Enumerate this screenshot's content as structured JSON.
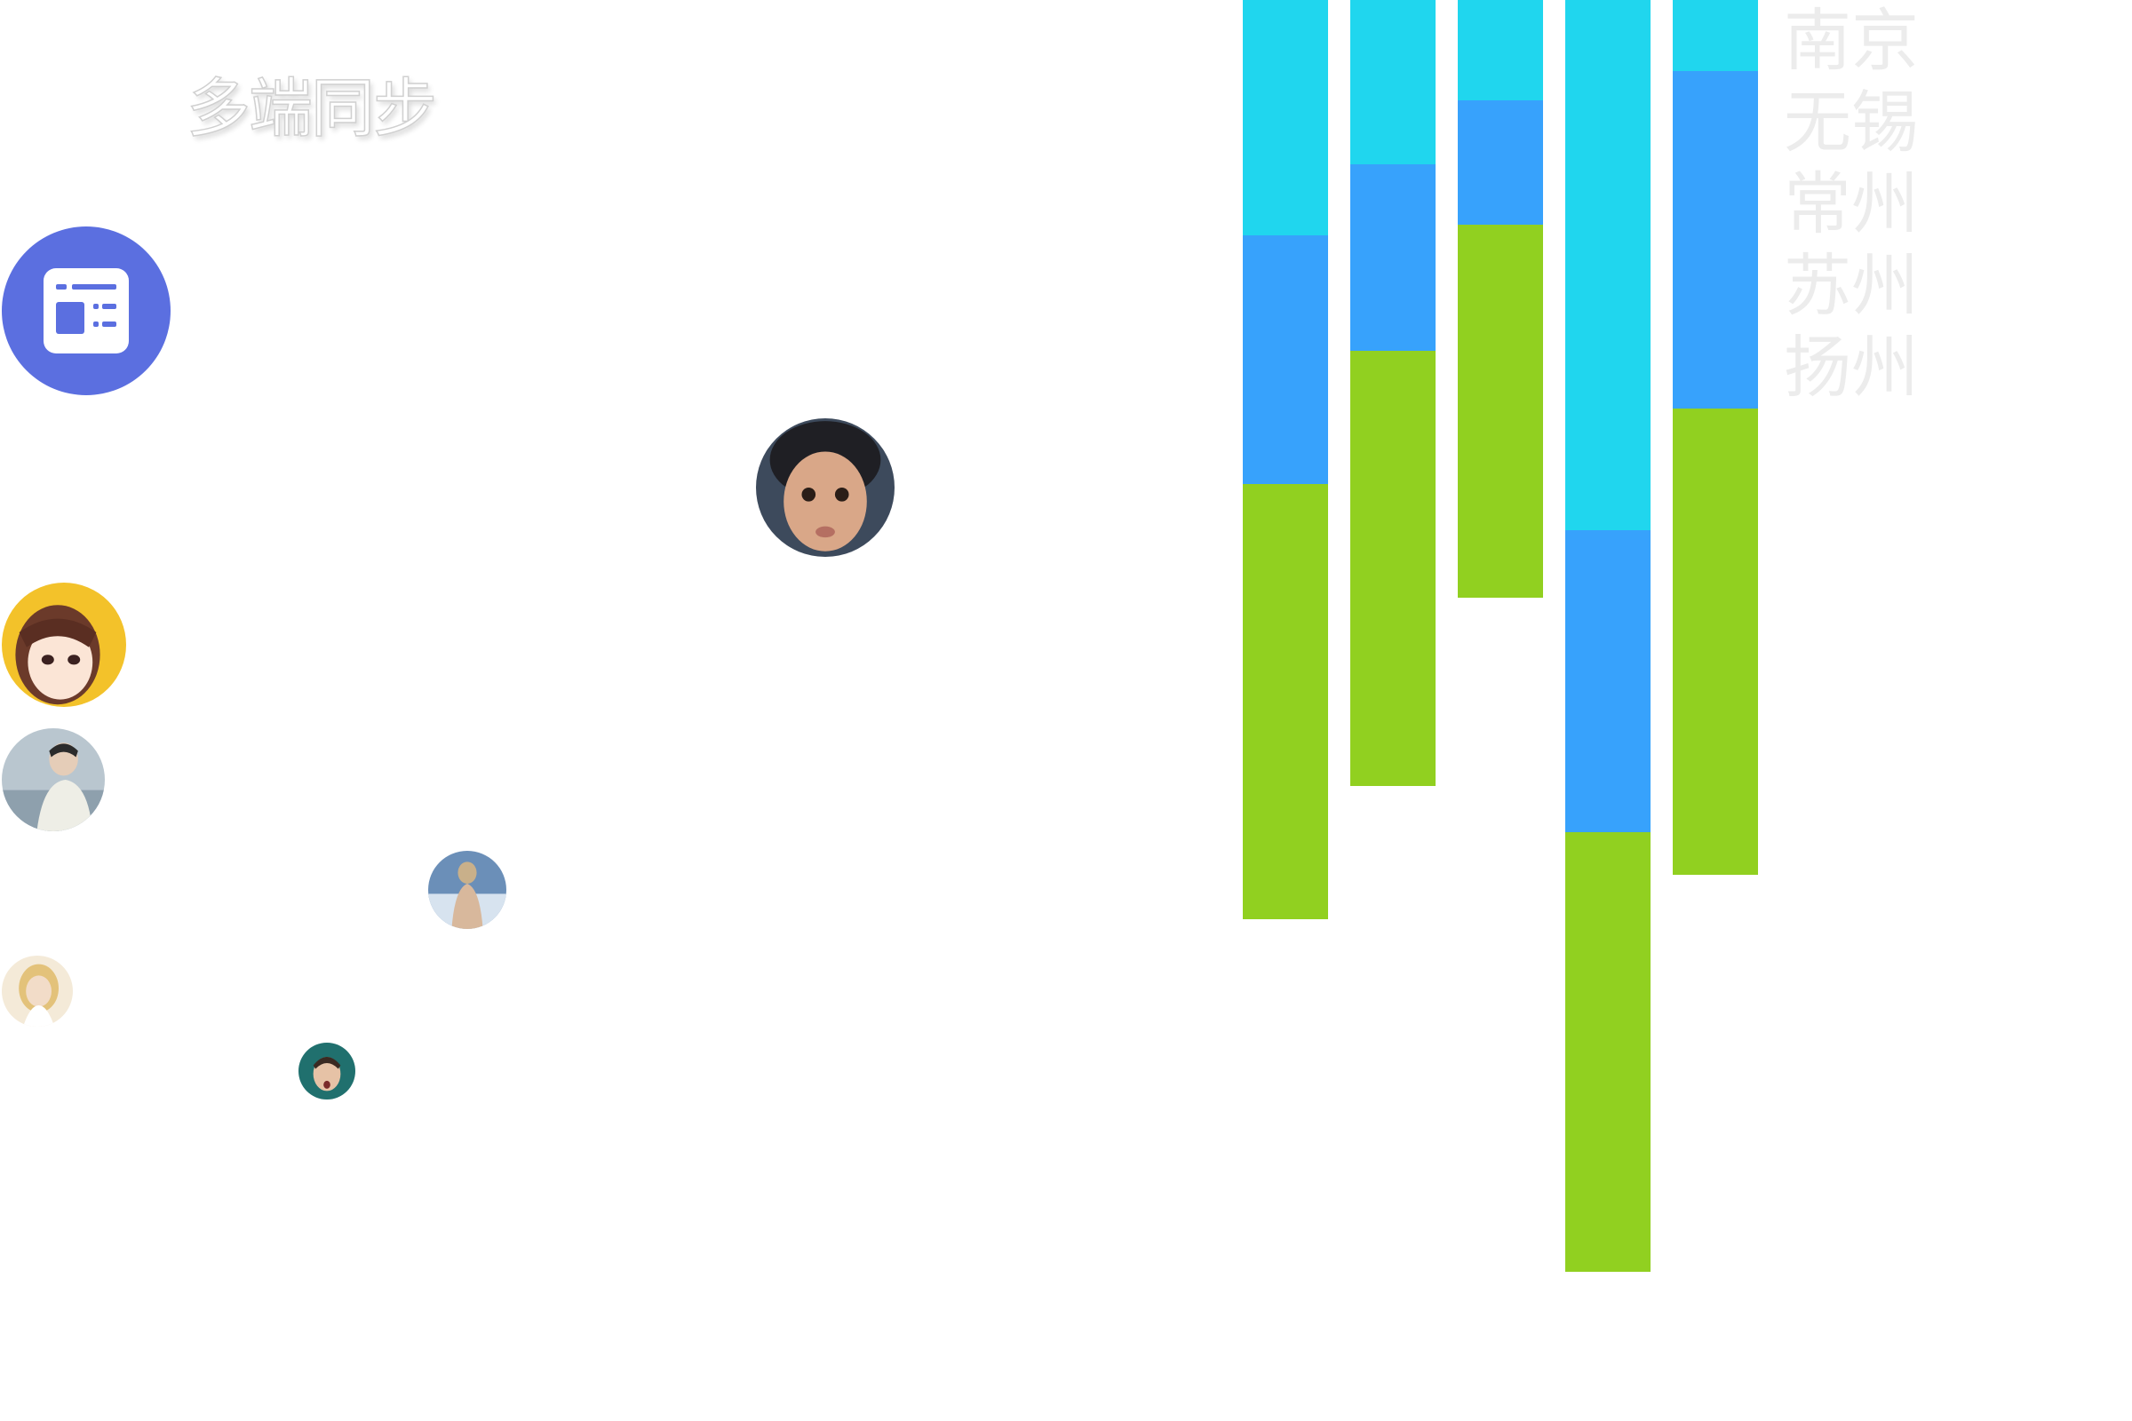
{
  "page": {
    "heading": "多端同步"
  },
  "feature_icon": {
    "name": "layout-panel-icon",
    "background": "#5b6fe0",
    "foreground": "#ffffff"
  },
  "avatars": [
    {
      "name": "avatar-child",
      "skin": "#d9a788",
      "bg": "#3d4a5c"
    },
    {
      "name": "avatar-anime-girl",
      "skin": "#fbe5d6",
      "bg": "#f3c22a"
    },
    {
      "name": "avatar-man-lake",
      "skin": "#e5cdb8",
      "bg": "#b9c6cf"
    },
    {
      "name": "avatar-woman-back",
      "skin": "#d8b89c",
      "bg": "#6b8fb8"
    },
    {
      "name": "avatar-blonde-woman",
      "skin": "#f2dcc8",
      "bg": "#f4ead8"
    },
    {
      "name": "avatar-man-teal",
      "skin": "#e6c2a6",
      "bg": "#20706e"
    }
  ],
  "chart_data": {
    "type": "bar",
    "stacked": true,
    "colors": [
      "#91d020",
      "#37a2fc",
      "#20d6ee"
    ],
    "series": [
      {
        "values": [
          490,
          490,
          420,
          495,
          525
        ]
      },
      {
        "values": [
          280,
          210,
          140,
          340,
          380
        ]
      },
      {
        "values": [
          265,
          185,
          113,
          597,
          80
        ]
      }
    ],
    "legend": [
      "南京",
      "无锡",
      "常州",
      "苏州",
      "扬州"
    ],
    "legend_color": "#ececec"
  }
}
